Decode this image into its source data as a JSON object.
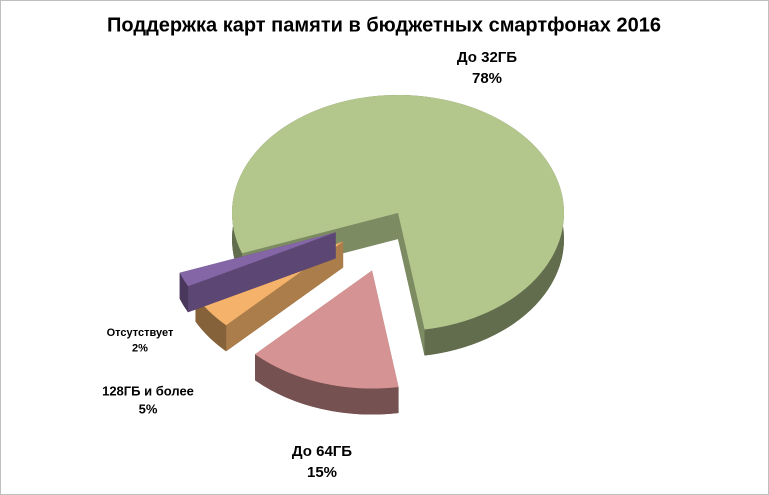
{
  "chart_data": {
    "type": "pie",
    "title": "Поддержка карт памяти в бюджетных смартфонах 2016",
    "categories": [
      "До 32ГБ",
      "До 64ГБ",
      "128ГБ и более",
      "Отсутствует"
    ],
    "values": [
      78,
      15,
      5,
      2
    ],
    "value_labels": [
      "78%",
      "15%",
      "5%",
      "2%"
    ],
    "colors": [
      "#b3c68c",
      "#d69393",
      "#f4b26a",
      "#8466a6"
    ]
  }
}
